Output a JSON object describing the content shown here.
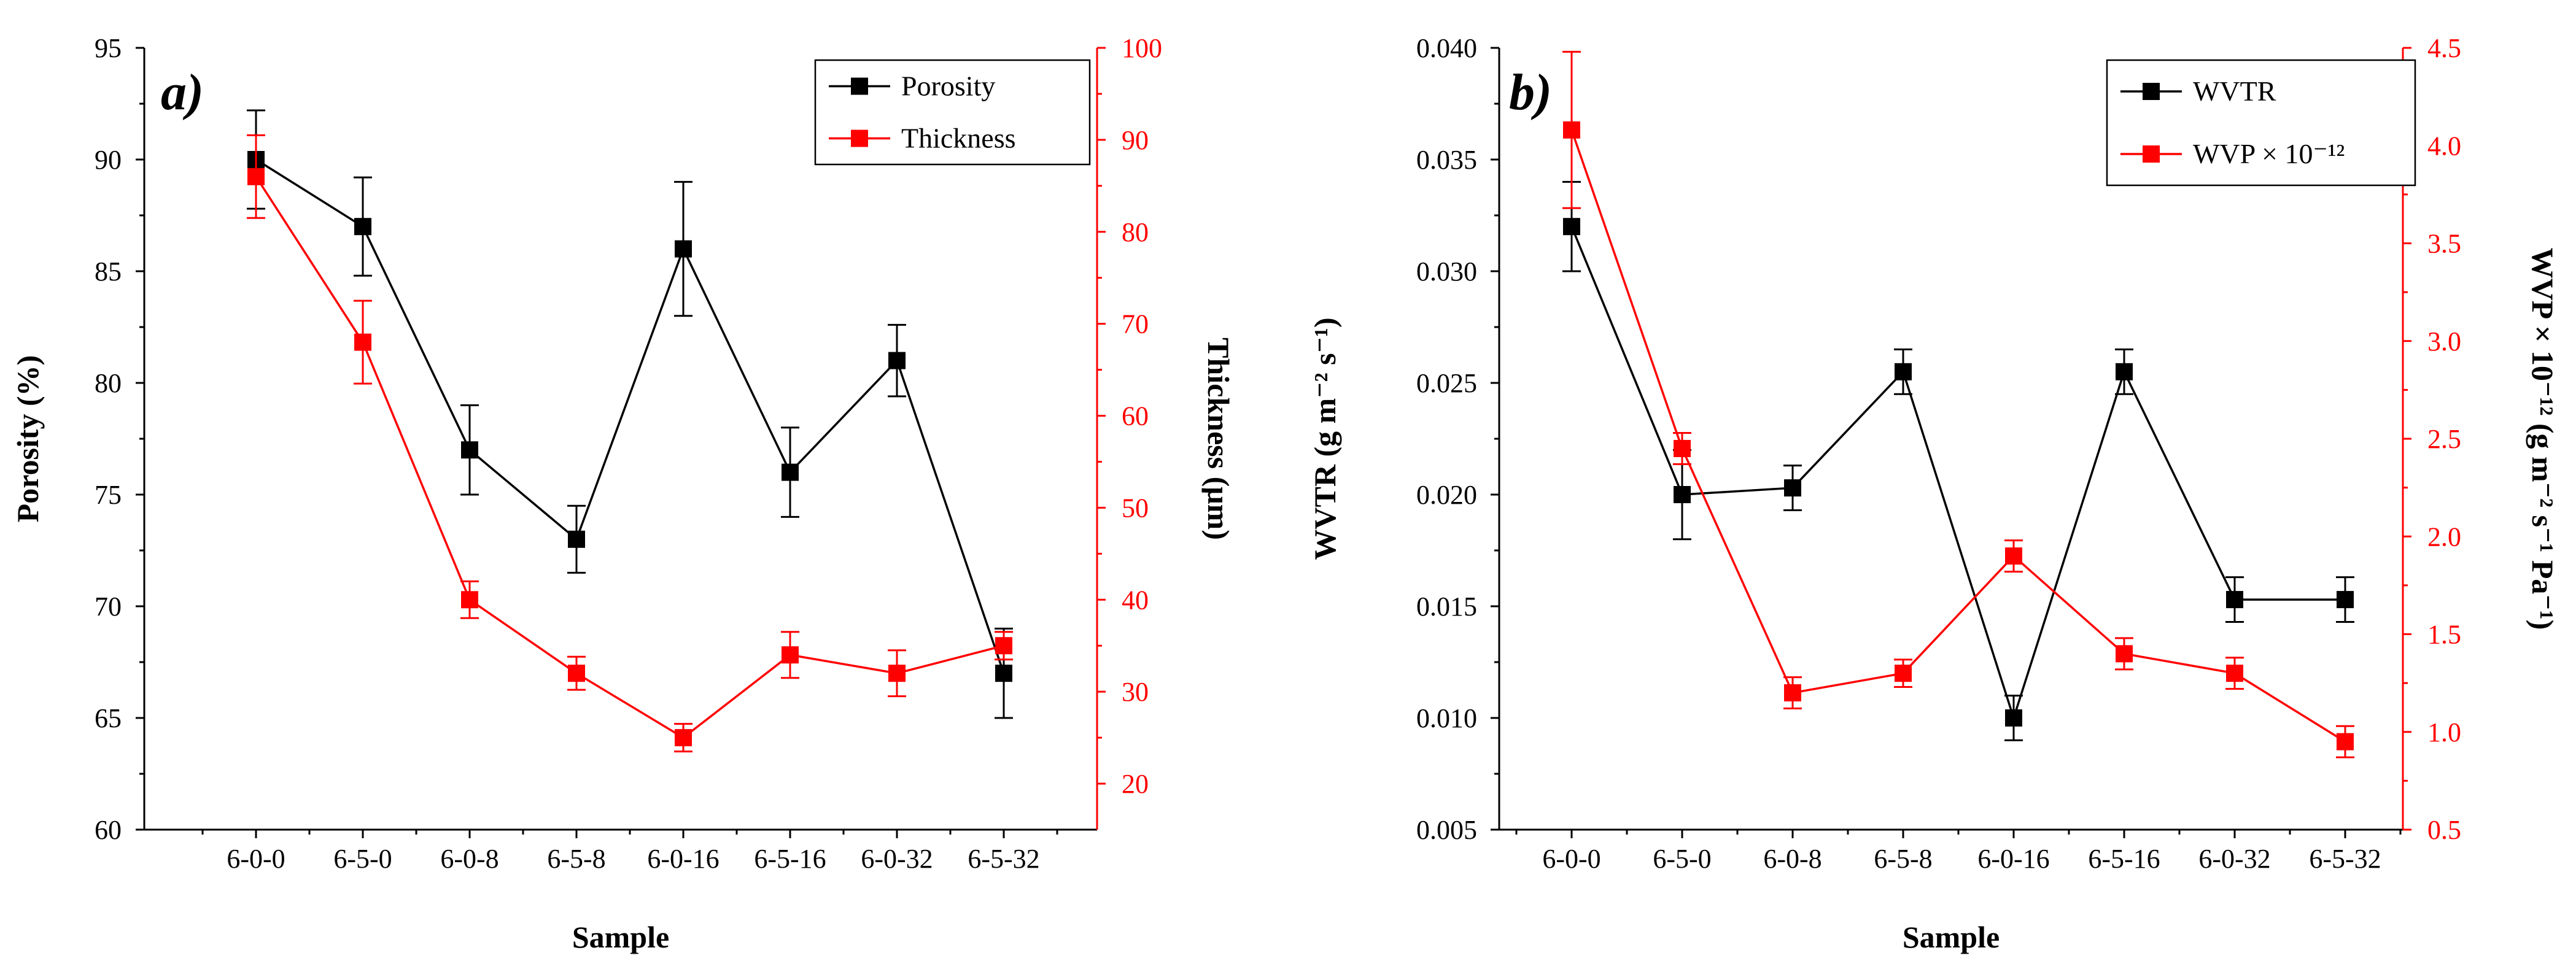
{
  "chart_data": [
    {
      "type": "line",
      "panel_label": "a)",
      "categories": [
        "6-0-0",
        "6-5-0",
        "6-0-8",
        "6-5-8",
        "6-0-16",
        "6-5-16",
        "6-0-32",
        "6-5-32"
      ],
      "xlabel": "Sample",
      "ylabel": "Porosity (%)",
      "y2label": "Thickness (μm)",
      "ylim": [
        60,
        95
      ],
      "yticks": [
        60,
        65,
        70,
        75,
        80,
        85,
        90,
        95
      ],
      "y2lim": [
        15,
        100
      ],
      "y2ticks": [
        20,
        30,
        40,
        50,
        60,
        70,
        80,
        90,
        100
      ],
      "legend_position": "top-right",
      "series": [
        {
          "name": "Porosity",
          "axis": "left",
          "color": "#000000",
          "values": [
            90,
            87,
            77,
            73,
            86,
            76,
            81,
            67
          ],
          "errors": [
            2.2,
            2.2,
            2.0,
            1.5,
            3.0,
            2.0,
            1.6,
            2.0
          ]
        },
        {
          "name": "Thickness",
          "axis": "right",
          "color": "#ff0000",
          "values": [
            86,
            68,
            40,
            32,
            25,
            34,
            32,
            35
          ],
          "errors": [
            4.5,
            4.5,
            2.0,
            1.8,
            1.5,
            2.5,
            2.5,
            1.5
          ]
        }
      ]
    },
    {
      "type": "line",
      "panel_label": "b)",
      "categories": [
        "6-0-0",
        "6-5-0",
        "6-0-8",
        "6-5-8",
        "6-0-16",
        "6-5-16",
        "6-0-32",
        "6-5-32"
      ],
      "xlabel": "Sample",
      "ylabel": "WVTR (g m⁻² s⁻¹)",
      "y2label": "WVP × 10⁻¹² (g m⁻² s⁻¹ Pa⁻¹)",
      "ylim": [
        0.005,
        0.04
      ],
      "yticks": [
        "0.005",
        "0.010",
        "0.015",
        "0.020",
        "0.025",
        "0.030",
        "0.035",
        "0.040"
      ],
      "y2lim": [
        0.5,
        4.5
      ],
      "y2ticks": [
        "0.5",
        "1.0",
        "1.5",
        "2.0",
        "2.5",
        "3.0",
        "3.5",
        "4.0",
        "4.5"
      ],
      "legend_position": "top-right",
      "series": [
        {
          "name": "WVTR",
          "axis": "left",
          "color": "#000000",
          "values": [
            0.032,
            0.02,
            0.0203,
            0.0255,
            0.01,
            0.0255,
            0.0153,
            0.0153
          ],
          "errors": [
            0.002,
            0.002,
            0.001,
            0.001,
            0.001,
            0.001,
            0.001,
            0.001
          ]
        },
        {
          "name": "WVP × 10⁻¹²",
          "axis": "right",
          "color": "#ff0000",
          "values": [
            4.08,
            2.45,
            1.2,
            1.3,
            1.9,
            1.4,
            1.3,
            0.95
          ],
          "errors": [
            0.4,
            0.08,
            0.08,
            0.07,
            0.08,
            0.08,
            0.08,
            0.08
          ]
        }
      ]
    }
  ]
}
